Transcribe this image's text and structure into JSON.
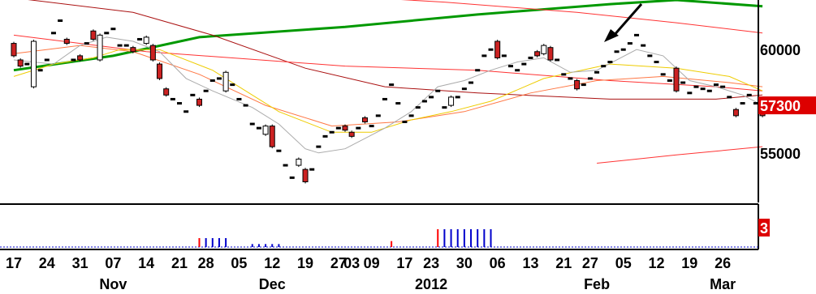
{
  "chart_data": {
    "type": "candlestick",
    "price_axis": {
      "min": 52600,
      "max": 62400,
      "tick_labels": [
        "60000",
        "55000"
      ],
      "tick_values": [
        60000,
        55000
      ],
      "last_price_label": "57300",
      "last_price_value": 57300,
      "last_price_color": "#dd0000"
    },
    "volume_panel": {
      "label": "3",
      "label_color": "#dd0000",
      "max": 6
    },
    "x_tick_labels": [
      "17",
      "24",
      "31",
      "07",
      "14",
      "21",
      "28",
      "05",
      "12",
      "19",
      "27",
      "03",
      "09",
      "17",
      "23",
      "30",
      "06",
      "13",
      "21",
      "27",
      "05",
      "12",
      "19",
      "26"
    ],
    "x_tick_index": [
      0,
      5,
      10,
      15,
      20,
      25,
      29,
      34,
      39,
      44,
      49,
      51,
      54,
      59,
      63,
      68,
      73,
      78,
      83,
      87,
      92,
      97,
      102,
      107
    ],
    "month_labels": [
      "Nov",
      "Dec",
      "2012",
      "Feb",
      "Mar"
    ],
    "month_index": [
      15,
      39,
      63,
      88,
      107
    ],
    "candles": [
      [
        60300,
        59700
      ],
      [
        59500,
        59200
      ],
      [
        59300,
        59300
      ],
      [
        58200,
        60400
      ],
      [
        59000,
        59000
      ],
      [
        59500,
        59500
      ],
      [
        60800,
        60800
      ],
      [
        61400,
        61300
      ],
      [
        60500,
        60300
      ],
      [
        59400,
        59500
      ],
      [
        59700,
        59500
      ],
      [
        60200,
        60300
      ],
      [
        60900,
        60500
      ],
      [
        59500,
        60700
      ],
      [
        60800,
        60800
      ],
      [
        61000,
        61000
      ],
      [
        60200,
        60200
      ],
      [
        60100,
        60200
      ],
      [
        60100,
        59900
      ],
      [
        60500,
        60400
      ],
      [
        60300,
        60600
      ],
      [
        60200,
        59500
      ],
      [
        59300,
        58600
      ],
      [
        58100,
        57800
      ],
      [
        57600,
        57600
      ],
      [
        57300,
        57400
      ],
      [
        57000,
        56900
      ],
      [
        57700,
        57800
      ],
      [
        57600,
        57300
      ],
      [
        58000,
        58000
      ],
      [
        58500,
        58500
      ],
      [
        58600,
        58600
      ],
      [
        58000,
        58900
      ],
      [
        58300,
        58300
      ],
      [
        57500,
        57600
      ],
      [
        57300,
        57300
      ],
      [
        56400,
        56300
      ],
      [
        56200,
        56200
      ],
      [
        55900,
        56300
      ],
      [
        56300,
        55300
      ],
      [
        55100,
        55100
      ],
      [
        54400,
        54400
      ],
      [
        53800,
        53800
      ],
      [
        54400,
        54700
      ],
      [
        54200,
        53600
      ],
      [
        54200,
        54200
      ],
      [
        55300,
        55300
      ],
      [
        55800,
        55800
      ],
      [
        56000,
        56000
      ],
      [
        56200,
        56200
      ],
      [
        56300,
        56100
      ],
      [
        56000,
        55800
      ],
      [
        56200,
        56100
      ],
      [
        56700,
        56500
      ],
      [
        56300,
        56300
      ],
      [
        56800,
        56800
      ],
      [
        57600,
        57600
      ],
      [
        58200,
        58300
      ],
      [
        57300,
        57400
      ],
      [
        56500,
        56500
      ],
      [
        56800,
        56800
      ],
      [
        57200,
        57200
      ],
      [
        57500,
        57500
      ],
      [
        57700,
        57700
      ],
      [
        58000,
        58000
      ],
      [
        57200,
        57100
      ],
      [
        57300,
        57700
      ],
      [
        57600,
        57700
      ],
      [
        58000,
        58100
      ],
      [
        58400,
        58400
      ],
      [
        59000,
        59000
      ],
      [
        59600,
        59700
      ],
      [
        60000,
        60000
      ],
      [
        60400,
        59600
      ],
      [
        59700,
        59700
      ],
      [
        59200,
        59200
      ],
      [
        59000,
        59000
      ],
      [
        59300,
        59300
      ],
      [
        59500,
        59600
      ],
      [
        59900,
        59700
      ],
      [
        59800,
        60200
      ],
      [
        60100,
        59500
      ],
      [
        59500,
        59500
      ],
      [
        58800,
        58800
      ],
      [
        58600,
        58500
      ],
      [
        58500,
        58100
      ],
      [
        58200,
        58300
      ],
      [
        58600,
        58600
      ],
      [
        58900,
        58900
      ],
      [
        59200,
        59200
      ],
      [
        59400,
        59400
      ],
      [
        59800,
        59900
      ],
      [
        60000,
        60000
      ],
      [
        60300,
        60300
      ],
      [
        60700,
        60700
      ],
      [
        60100,
        60200
      ],
      [
        59700,
        59700
      ],
      [
        59400,
        59400
      ],
      [
        58800,
        58700
      ],
      [
        58500,
        58500
      ],
      [
        59100,
        58000
      ],
      [
        58400,
        58400
      ],
      [
        57900,
        57900
      ],
      [
        58200,
        58200
      ],
      [
        58100,
        58100
      ],
      [
        57900,
        58000
      ],
      [
        58300,
        58200
      ],
      [
        58200,
        58100
      ],
      [
        57600,
        57700
      ],
      [
        57100,
        56800
      ],
      [
        57400,
        57400
      ],
      [
        57700,
        57800
      ],
      [
        57400,
        57300
      ],
      [
        57200,
        56800
      ]
    ],
    "volume": [
      0,
      0,
      0,
      0,
      0,
      0,
      0,
      0,
      0,
      0,
      0,
      0,
      0,
      0,
      0,
      0,
      0,
      0,
      0,
      0,
      0,
      0,
      0,
      0,
      0,
      0,
      0,
      0,
      3,
      3,
      3,
      3,
      3,
      0,
      0,
      0,
      1,
      1,
      1,
      1,
      1,
      0,
      0,
      0,
      0,
      0,
      0,
      0,
      0,
      0,
      0,
      0,
      0,
      0,
      0,
      0,
      0,
      2,
      0,
      0,
      0,
      0,
      0,
      0,
      6,
      6,
      6,
      6,
      6,
      6,
      6,
      6,
      6,
      0,
      0,
      0,
      0,
      0,
      0,
      0,
      0,
      0,
      0,
      0,
      0,
      0,
      0,
      0,
      0,
      0,
      0,
      0,
      0,
      0,
      0,
      0,
      0,
      0,
      0,
      0,
      0,
      0,
      0,
      0,
      0,
      0,
      0,
      0,
      0,
      0,
      0,
      0,
      0,
      0
    ],
    "series": [
      {
        "color": "#009900",
        "width": 3,
        "points": [
          [
            0,
            59000
          ],
          [
            15,
            59700
          ],
          [
            28,
            60600
          ],
          [
            50,
            61100
          ],
          [
            70,
            61700
          ],
          [
            90,
            62200
          ],
          [
            100,
            62400
          ],
          [
            113,
            62100
          ]
        ]
      },
      {
        "color": "#aa1111",
        "width": 1,
        "points": [
          [
            0,
            62500
          ],
          [
            18,
            61800
          ],
          [
            30,
            60700
          ],
          [
            44,
            59100
          ],
          [
            56,
            58200
          ],
          [
            70,
            57900
          ],
          [
            90,
            57600
          ],
          [
            106,
            57600
          ],
          [
            113,
            57800
          ]
        ]
      },
      {
        "color": "#ff3333",
        "width": 1,
        "points": [
          [
            0,
            60700
          ],
          [
            20,
            59900
          ],
          [
            50,
            59200
          ],
          [
            70,
            59000
          ],
          [
            90,
            58500
          ],
          [
            106,
            58200
          ],
          [
            113,
            58000
          ]
        ]
      },
      {
        "color": "#ff3333",
        "width": 1,
        "points": [
          [
            54,
            62500
          ],
          [
            65,
            62300
          ],
          [
            85,
            61800
          ],
          [
            100,
            61300
          ],
          [
            113,
            60800
          ]
        ]
      },
      {
        "color": "#ff3333",
        "width": 1,
        "points": [
          [
            88,
            54500
          ],
          [
            100,
            54900
          ],
          [
            113,
            55300
          ]
        ]
      },
      {
        "color": "#ff7744",
        "width": 1,
        "points": [
          [
            0,
            59800
          ],
          [
            10,
            60200
          ],
          [
            18,
            59900
          ],
          [
            28,
            58800
          ],
          [
            38,
            57300
          ],
          [
            48,
            56300
          ],
          [
            58,
            56500
          ],
          [
            68,
            57000
          ],
          [
            78,
            57900
          ],
          [
            88,
            58500
          ],
          [
            98,
            58700
          ],
          [
            108,
            58400
          ],
          [
            113,
            58200
          ]
        ]
      },
      {
        "color": "#eecc00",
        "width": 1,
        "points": [
          [
            0,
            58700
          ],
          [
            6,
            59300
          ],
          [
            12,
            59600
          ],
          [
            16,
            60000
          ],
          [
            22,
            60000
          ],
          [
            30,
            59000
          ],
          [
            40,
            57000
          ],
          [
            48,
            56000
          ],
          [
            54,
            56000
          ],
          [
            60,
            56600
          ],
          [
            66,
            57000
          ],
          [
            72,
            57500
          ],
          [
            80,
            58600
          ],
          [
            90,
            59300
          ],
          [
            100,
            59100
          ],
          [
            108,
            58700
          ],
          [
            113,
            58000
          ]
        ]
      },
      {
        "color": "#aaaaaa",
        "width": 1,
        "points": [
          [
            0,
            59500
          ],
          [
            6,
            59300
          ],
          [
            10,
            60200
          ],
          [
            14,
            60600
          ],
          [
            18,
            60400
          ],
          [
            22,
            59900
          ],
          [
            26,
            58600
          ],
          [
            30,
            58000
          ],
          [
            36,
            57200
          ],
          [
            40,
            56400
          ],
          [
            44,
            55200
          ],
          [
            46,
            55000
          ],
          [
            50,
            55200
          ],
          [
            56,
            56200
          ],
          [
            60,
            57000
          ],
          [
            64,
            58200
          ],
          [
            68,
            58500
          ],
          [
            72,
            59000
          ],
          [
            76,
            59400
          ],
          [
            80,
            59600
          ],
          [
            84,
            58900
          ],
          [
            88,
            59000
          ],
          [
            94,
            60000
          ],
          [
            98,
            59700
          ],
          [
            102,
            58500
          ],
          [
            106,
            58200
          ],
          [
            110,
            57800
          ],
          [
            113,
            57300
          ]
        ]
      }
    ]
  }
}
